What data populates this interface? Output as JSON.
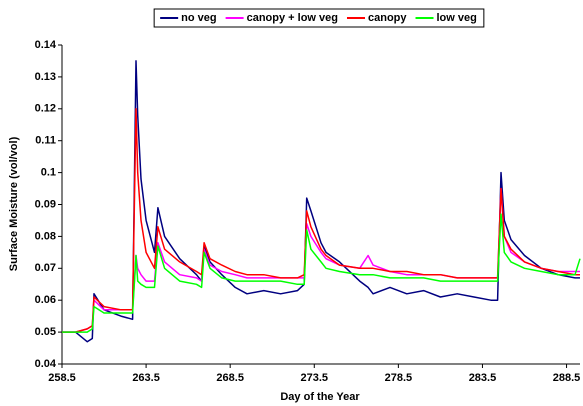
{
  "chart_data": {
    "type": "line",
    "x_label": "Day of the Year",
    "y_label": "Surface Moisture (vol/vol)",
    "legend": "top",
    "grid": false,
    "xlim": [
      258.5,
      289.3
    ],
    "xticks": [
      258.5,
      263.5,
      268.5,
      273.5,
      278.5,
      283.5,
      288.5
    ],
    "ylim": [
      0.04,
      0.14
    ],
    "yticks": [
      0.04,
      0.05,
      0.06,
      0.07,
      0.08,
      0.09,
      0.1,
      0.11,
      0.12,
      0.13,
      0.14
    ],
    "x": [
      258.5,
      259.3,
      260.0,
      260.3,
      260.4,
      261.0,
      262.0,
      262.7,
      262.9,
      263.0,
      263.2,
      263.5,
      264.0,
      264.2,
      264.6,
      265.5,
      266.5,
      266.8,
      266.95,
      267.3,
      268.0,
      268.8,
      269.5,
      270.5,
      271.5,
      272.5,
      272.9,
      273.05,
      273.3,
      273.9,
      274.2,
      275.0,
      276.2,
      276.7,
      277.0,
      278.0,
      279.0,
      280.0,
      281.0,
      282.0,
      283.0,
      284.0,
      284.4,
      284.6,
      284.8,
      285.2,
      286.0,
      287.0,
      288.0,
      289.0,
      289.3
    ],
    "series": [
      {
        "name": "no veg",
        "color": "#000080",
        "values": [
          0.05,
          0.05,
          0.047,
          0.048,
          0.062,
          0.057,
          0.055,
          0.054,
          0.135,
          0.118,
          0.098,
          0.085,
          0.075,
          0.089,
          0.08,
          0.073,
          0.068,
          0.066,
          0.077,
          0.072,
          0.068,
          0.064,
          0.062,
          0.063,
          0.062,
          0.063,
          0.065,
          0.092,
          0.088,
          0.078,
          0.075,
          0.072,
          0.066,
          0.064,
          0.062,
          0.064,
          0.062,
          0.063,
          0.061,
          0.062,
          0.061,
          0.06,
          0.06,
          0.1,
          0.085,
          0.079,
          0.074,
          0.07,
          0.068,
          0.067,
          0.067
        ]
      },
      {
        "name": "canopy + low veg",
        "color": "#ff00ff",
        "values": [
          0.05,
          0.05,
          0.051,
          0.052,
          0.06,
          0.057,
          0.057,
          0.057,
          0.074,
          0.07,
          0.068,
          0.066,
          0.066,
          0.078,
          0.072,
          0.068,
          0.067,
          0.066,
          0.076,
          0.071,
          0.069,
          0.068,
          0.067,
          0.067,
          0.067,
          0.067,
          0.067,
          0.084,
          0.08,
          0.075,
          0.073,
          0.071,
          0.07,
          0.074,
          0.071,
          0.069,
          0.068,
          0.068,
          0.068,
          0.067,
          0.067,
          0.067,
          0.067,
          0.095,
          0.08,
          0.075,
          0.072,
          0.07,
          0.069,
          0.069,
          0.069
        ]
      },
      {
        "name": "canopy",
        "color": "#ff0000",
        "values": [
          0.05,
          0.05,
          0.051,
          0.052,
          0.061,
          0.058,
          0.057,
          0.057,
          0.12,
          0.1,
          0.085,
          0.075,
          0.07,
          0.083,
          0.076,
          0.072,
          0.069,
          0.068,
          0.078,
          0.073,
          0.071,
          0.069,
          0.068,
          0.068,
          0.067,
          0.067,
          0.068,
          0.088,
          0.083,
          0.076,
          0.074,
          0.071,
          0.07,
          0.07,
          0.07,
          0.069,
          0.069,
          0.068,
          0.068,
          0.067,
          0.067,
          0.067,
          0.067,
          0.095,
          0.08,
          0.076,
          0.072,
          0.07,
          0.069,
          0.068,
          0.068
        ]
      },
      {
        "name": "low veg",
        "color": "#00ff00",
        "values": [
          0.05,
          0.05,
          0.05,
          0.051,
          0.058,
          0.056,
          0.056,
          0.056,
          0.074,
          0.066,
          0.065,
          0.064,
          0.064,
          0.077,
          0.07,
          0.066,
          0.065,
          0.064,
          0.075,
          0.07,
          0.067,
          0.066,
          0.066,
          0.066,
          0.066,
          0.065,
          0.065,
          0.082,
          0.076,
          0.072,
          0.07,
          0.069,
          0.068,
          0.068,
          0.068,
          0.067,
          0.067,
          0.067,
          0.066,
          0.066,
          0.066,
          0.066,
          0.066,
          0.087,
          0.075,
          0.072,
          0.07,
          0.069,
          0.068,
          0.068,
          0.073
        ]
      }
    ]
  }
}
